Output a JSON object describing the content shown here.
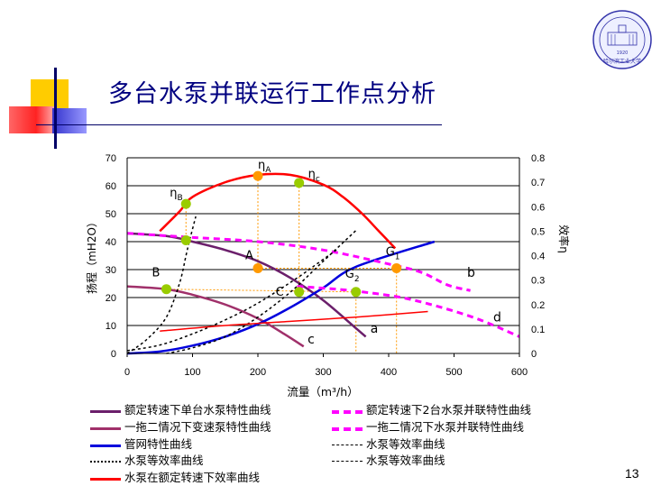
{
  "slide": {
    "title": "多台水泵并联运行工作点分析",
    "page_number": "13"
  },
  "chart_data": {
    "type": "line",
    "x": {
      "label": "流量（m³/h）",
      "range": [
        0,
        600
      ],
      "ticks": [
        0,
        100,
        200,
        300,
        400,
        500,
        600
      ]
    },
    "y_left": {
      "label": "扬程（mH2O）",
      "range": [
        0,
        70
      ],
      "ticks": [
        0,
        10,
        20,
        30,
        40,
        50,
        60,
        70
      ]
    },
    "y_right": {
      "label": "效率η",
      "range": [
        0,
        0.8
      ],
      "ticks": [
        "0",
        "0.1",
        "0.2",
        "0.3",
        "0.4",
        "0.5",
        "0.6",
        "0.7",
        "0.8"
      ]
    },
    "grid": "horizontal",
    "series": [
      {
        "name": "额定转速下单台水泵特性曲线",
        "key": "a",
        "color": "#6b1f6b",
        "style": "solid",
        "axis": "left",
        "points": [
          [
            0,
            43
          ],
          [
            60,
            42
          ],
          [
            100,
            40
          ],
          [
            150,
            37
          ],
          [
            200,
            33
          ],
          [
            250,
            27
          ],
          [
            300,
            19
          ],
          [
            350,
            9
          ],
          [
            365,
            6
          ]
        ]
      },
      {
        "name": "一拖二情况下变速泵特性曲线",
        "key": "c",
        "color": "#a0306a",
        "style": "solid",
        "axis": "left",
        "points": [
          [
            0,
            24
          ],
          [
            60,
            23
          ],
          [
            100,
            21
          ],
          [
            150,
            17.5
          ],
          [
            200,
            12.5
          ],
          [
            240,
            7
          ],
          [
            270,
            2.5
          ]
        ]
      },
      {
        "name": "管网特性曲线",
        "color": "#0000dd",
        "style": "solid",
        "axis": "left",
        "points": [
          [
            0,
            0
          ],
          [
            50,
            0.7
          ],
          [
            100,
            2.8
          ],
          [
            150,
            6
          ],
          [
            200,
            10.5
          ],
          [
            250,
            16.5
          ],
          [
            300,
            23.5
          ],
          [
            350,
            31
          ],
          [
            412,
            30
          ],
          [
            470,
            40
          ]
        ]
      },
      {
        "name": "额定转速下2台水泵并联特性曲线",
        "key": "b",
        "color": "#ff00ff",
        "style": "dash",
        "axis": "left",
        "points": [
          [
            0,
            43
          ],
          [
            100,
            41.5
          ],
          [
            200,
            40
          ],
          [
            300,
            37
          ],
          [
            400,
            32
          ],
          [
            450,
            29
          ],
          [
            490,
            24.5
          ],
          [
            525,
            22.5
          ]
        ]
      },
      {
        "name": "一拖二情况下水泵并联特性曲线",
        "key": "d",
        "color": "#ff00ff",
        "style": "dash",
        "axis": "left",
        "points": [
          [
            260,
            24
          ],
          [
            320,
            23
          ],
          [
            360,
            22
          ],
          [
            420,
            20
          ],
          [
            480,
            16.5
          ],
          [
            540,
            12
          ],
          [
            600,
            6
          ]
        ]
      },
      {
        "name": "水泵等效率曲线",
        "color": "#000000",
        "style": "dot",
        "axis": "left",
        "points": [
          [
            0,
            0
          ],
          [
            30,
            5
          ],
          [
            60,
            13
          ],
          [
            80,
            25
          ],
          [
            90,
            35
          ],
          [
            95,
            40
          ],
          [
            105,
            49
          ]
        ]
      },
      {
        "name": "水泵等效率曲线",
        "color": "#000000",
        "style": "dot",
        "axis": "left",
        "points": [
          [
            0,
            1
          ],
          [
            50,
            3
          ],
          [
            100,
            7
          ],
          [
            150,
            12
          ],
          [
            200,
            18
          ],
          [
            260,
            27
          ],
          [
            290,
            32
          ],
          [
            320,
            37
          ]
        ]
      },
      {
        "name": "水泵等效率曲线",
        "color": "#000000",
        "style": "dot",
        "axis": "left",
        "points": [
          [
            60,
            0
          ],
          [
            100,
            2
          ],
          [
            150,
            6
          ],
          [
            200,
            13
          ],
          [
            250,
            22
          ],
          [
            300,
            33
          ],
          [
            350,
            44
          ]
        ]
      },
      {
        "name": "水泵在额定转速下效率曲线",
        "color": "#ff0000",
        "style": "solid",
        "axis": "right",
        "points": [
          [
            50,
            0.5
          ],
          [
            80,
            0.58
          ],
          [
            100,
            0.64
          ],
          [
            150,
            0.7
          ],
          [
            200,
            0.73
          ],
          [
            250,
            0.73
          ],
          [
            300,
            0.69
          ],
          [
            330,
            0.64
          ],
          [
            360,
            0.57
          ],
          [
            385,
            0.5
          ],
          [
            410,
            0.43
          ]
        ]
      },
      {
        "name": "水泵在额定转速下效率曲线",
        "color": "#ff0000",
        "style": "solid",
        "axis": "left",
        "points": [
          [
            50,
            8
          ],
          [
            150,
            10
          ],
          [
            250,
            11.5
          ],
          [
            350,
            13
          ],
          [
            460,
            15
          ]
        ]
      }
    ],
    "annotations": [
      {
        "label": "ηA",
        "main": "η",
        "sub": "A",
        "x": 200,
        "y": 63.5,
        "marker": "orange"
      },
      {
        "label": "ηc",
        "main": "η",
        "sub": "c",
        "x": 263,
        "y": 61,
        "marker": "green"
      },
      {
        "label": "ηB",
        "main": "η",
        "sub": "B",
        "x": 90,
        "y": 53.5,
        "marker": "green"
      },
      {
        "label": "G1",
        "main": "G",
        "sub": "1",
        "x": 412,
        "y": 30.5,
        "marker": "orange"
      },
      {
        "label": "A",
        "main": "A",
        "sub": "",
        "x": 200,
        "y": 30.5,
        "marker": "orange"
      },
      {
        "label": "G2",
        "main": "G",
        "sub": "2",
        "x": 350,
        "y": 22,
        "marker": "green"
      },
      {
        "label": "C",
        "main": "C",
        "sub": "",
        "x": 263,
        "y": 22,
        "marker": "green"
      },
      {
        "label": "B",
        "main": "B",
        "sub": "",
        "x": 60,
        "y": 23,
        "marker": "green"
      },
      {
        "label": "",
        "main": "",
        "sub": "",
        "x": 90,
        "y": 40.5,
        "marker": "green"
      }
    ],
    "curve_labels": [
      {
        "text": "a",
        "x": 372,
        "y": 7.5
      },
      {
        "text": "b",
        "x": 520,
        "y": 27.5
      },
      {
        "text": "c",
        "x": 276,
        "y": 3.5
      },
      {
        "text": "d",
        "x": 560,
        "y": 11.5
      }
    ]
  },
  "legend": [
    {
      "label": "额定转速下单台水泵特性曲线",
      "color": "#6b1f6b",
      "style": "solid"
    },
    {
      "label": "额定转速下2台水泵并联特性曲线",
      "color": "#ff00ff",
      "style": "dash"
    },
    {
      "label": "一拖二情况下变速泵特性曲线",
      "color": "#a0306a",
      "style": "solid"
    },
    {
      "label": "一拖二情况下水泵并联特性曲线",
      "color": "#ff00ff",
      "style": "dash"
    },
    {
      "label": "管网特性曲线",
      "color": "#0000dd",
      "style": "solid"
    },
    {
      "label": "水泵等效率曲线",
      "color": "#000000",
      "style": "dotsmall"
    },
    {
      "label": "水泵等效率曲线",
      "color": "#000000",
      "style": "dot"
    },
    {
      "label": "水泵等效率曲线",
      "color": "#000000",
      "style": "dotsmall"
    },
    {
      "label": "水泵在额定转速下效率曲线",
      "color": "#ff0000",
      "style": "solid"
    }
  ],
  "colors": {
    "title": "#000080",
    "marker_orange": "#ff9900",
    "marker_green": "#99cc00",
    "helper_line": "#ff9900"
  },
  "seal": {
    "text": "哈尔滨工业大学",
    "year": "1920"
  }
}
